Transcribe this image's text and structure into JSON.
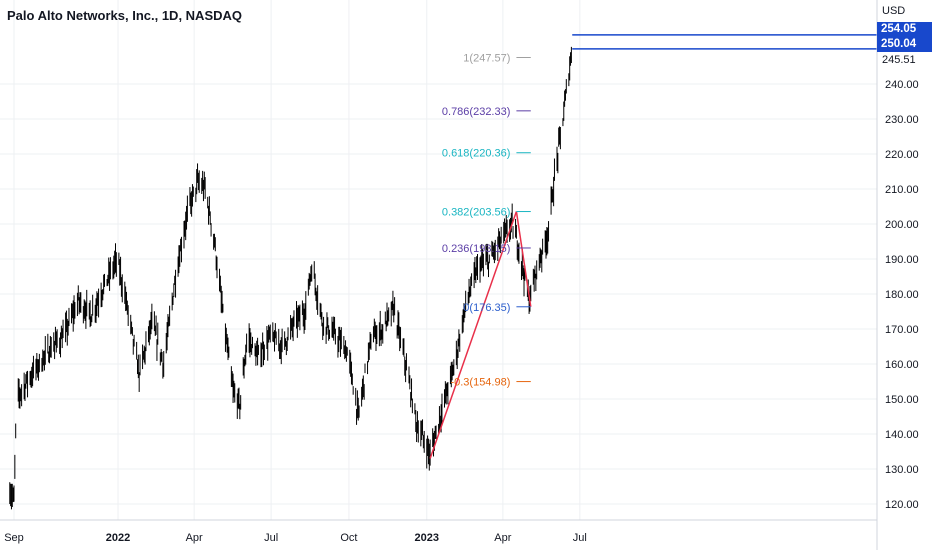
{
  "title": "Palo Alto Networks, Inc., 1D, NASDAQ",
  "currency": "USD",
  "price_tags": {
    "upper": "254.05",
    "lower": "250.04",
    "last": "245.51"
  },
  "colors": {
    "candle": "#000000",
    "trend": "#e8304a",
    "fib_1": "#a0a0a0",
    "fib_0786": "#5b3ea6",
    "fib_0618": "#19b5c2",
    "fib_0382": "#19b5c2",
    "fib_0236": "#5b3ea6",
    "fib_0": "#2b5ecc",
    "fib_neg": "#e6660f",
    "price_line": "#1848cc",
    "grid": "#eef0f3"
  },
  "chart_data": {
    "type": "candlestick",
    "title": "Palo Alto Networks, Inc., 1D, NASDAQ",
    "y_axis": {
      "unit": "USD",
      "ticks": [
        120,
        130,
        140,
        150,
        160,
        170,
        180,
        190,
        200,
        210,
        220,
        230,
        240
      ],
      "range": [
        116,
        257
      ]
    },
    "x_axis": {
      "tick_labels": [
        "Sep",
        "2022",
        "Apr",
        "Jul",
        "Oct",
        "2023",
        "Apr",
        "Jul"
      ]
    },
    "grid": true,
    "series": [
      {
        "type": "line_close_approx",
        "points": [
          [
            "2021-08-26",
            124
          ],
          [
            "2021-08-31",
            121
          ],
          [
            "2021-09-03",
            150
          ],
          [
            "2021-09-15",
            155
          ],
          [
            "2021-09-30",
            160
          ],
          [
            "2021-10-15",
            165
          ],
          [
            "2021-10-29",
            168
          ],
          [
            "2021-11-15",
            178
          ],
          [
            "2021-11-30",
            174
          ],
          [
            "2021-12-15",
            182
          ],
          [
            "2021-12-31",
            190
          ],
          [
            "2022-01-12",
            176
          ],
          [
            "2022-01-26",
            157
          ],
          [
            "2022-02-10",
            172
          ],
          [
            "2022-02-24",
            160
          ],
          [
            "2022-03-10",
            185
          ],
          [
            "2022-03-24",
            203
          ],
          [
            "2022-04-05",
            212
          ],
          [
            "2022-04-14",
            210
          ],
          [
            "2022-04-25",
            195
          ],
          [
            "2022-05-06",
            172
          ],
          [
            "2022-05-17",
            152
          ],
          [
            "2022-05-25",
            148
          ],
          [
            "2022-06-03",
            168
          ],
          [
            "2022-06-15",
            162
          ],
          [
            "2022-06-30",
            168
          ],
          [
            "2022-07-15",
            165
          ],
          [
            "2022-07-29",
            172
          ],
          [
            "2022-08-10",
            175
          ],
          [
            "2022-08-18",
            188
          ],
          [
            "2022-08-31",
            172
          ],
          [
            "2022-09-15",
            168
          ],
          [
            "2022-09-30",
            163
          ],
          [
            "2022-10-12",
            145
          ],
          [
            "2022-10-28",
            168
          ],
          [
            "2022-11-10",
            170
          ],
          [
            "2022-11-23",
            176
          ],
          [
            "2022-12-07",
            160
          ],
          [
            "2022-12-20",
            143
          ],
          [
            "2023-01-05",
            134
          ],
          [
            "2023-01-20",
            148
          ],
          [
            "2023-02-03",
            160
          ],
          [
            "2023-02-17",
            178
          ],
          [
            "2023-03-03",
            188
          ],
          [
            "2023-03-17",
            190
          ],
          [
            "2023-03-31",
            196
          ],
          [
            "2023-04-12",
            200
          ],
          [
            "2023-04-21",
            192
          ],
          [
            "2023-05-02",
            178
          ],
          [
            "2023-05-12",
            188
          ],
          [
            "2023-05-24",
            197
          ],
          [
            "2023-06-02",
            215
          ],
          [
            "2023-06-12",
            232
          ],
          [
            "2023-06-19",
            245
          ],
          [
            "2023-06-22",
            250
          ]
        ]
      }
    ],
    "fibonacci_retracement": {
      "levels": [
        {
          "ratio": "1",
          "price": 247.57,
          "label": "1(247.57)"
        },
        {
          "ratio": "0.786",
          "price": 232.33,
          "label": "0.786(232.33)"
        },
        {
          "ratio": "0.618",
          "price": 220.36,
          "label": "0.618(220.36)"
        },
        {
          "ratio": "0.382",
          "price": 203.56,
          "label": "0.382(203.56)"
        },
        {
          "ratio": "0.236",
          "price": 193.15,
          "label": "0.236(193.15)"
        },
        {
          "ratio": "0",
          "price": 176.35,
          "label": "0(176.35)"
        },
        {
          "ratio": "-0.3",
          "price": 154.98,
          "label": "-0.3(154.98)"
        }
      ],
      "trend_points": [
        [
          "2023-01-05",
          133
        ],
        [
          "2023-04-17",
          203.56
        ],
        [
          "2023-05-04",
          176.35
        ]
      ]
    },
    "price_lines": [
      254.05,
      250.04
    ]
  }
}
